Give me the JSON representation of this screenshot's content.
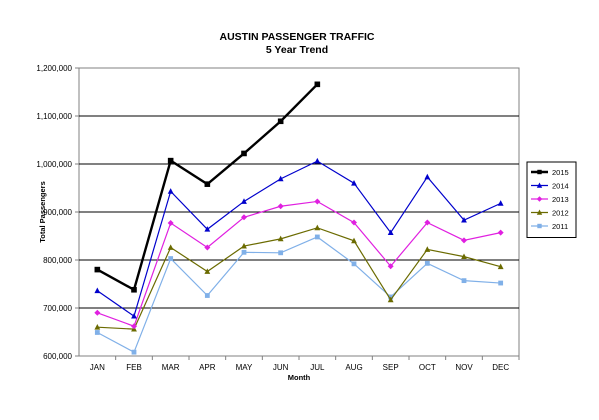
{
  "chart_data": {
    "type": "line",
    "title": "AUSTIN PASSENGER TRAFFIC",
    "subtitle": "5 Year Trend",
    "xlabel": "Month",
    "ylabel": "Total Passengers",
    "ylim": [
      600000,
      1200000
    ],
    "yticks": [
      600000,
      700000,
      800000,
      900000,
      1000000,
      1100000,
      1200000
    ],
    "ytick_labels": [
      "600,000",
      "700,000",
      "800,000",
      "900,000",
      "1,000,000",
      "1,100,000",
      "1,200,000"
    ],
    "grid": "horizontal",
    "legend_position": "right",
    "categories": [
      "JAN",
      "FEB",
      "MAR",
      "APR",
      "MAY",
      "JUN",
      "JUL",
      "AUG",
      "SEP",
      "OCT",
      "NOV",
      "DEC"
    ],
    "series": [
      {
        "name": "2015",
        "color": "#000000",
        "marker": "square",
        "line_width": 2.4,
        "values": [
          780000,
          738000,
          1007000,
          958000,
          1022000,
          1089000,
          1166000,
          null,
          null,
          null,
          null,
          null
        ]
      },
      {
        "name": "2014",
        "color": "#0000cc",
        "marker": "triangle",
        "line_width": 1.2,
        "values": [
          736000,
          683000,
          943000,
          864000,
          922000,
          969000,
          1006000,
          960000,
          857000,
          973000,
          883000,
          918000
        ]
      },
      {
        "name": "2013",
        "color": "#e020e0",
        "marker": "diamond",
        "line_width": 1.2,
        "values": [
          690000,
          662000,
          877000,
          826000,
          889000,
          912000,
          922000,
          878000,
          787000,
          878000,
          841000,
          857000
        ]
      },
      {
        "name": "2012",
        "color": "#6b6b00",
        "marker": "triangle",
        "line_width": 1.2,
        "values": [
          660000,
          656000,
          826000,
          776000,
          829000,
          844000,
          867000,
          840000,
          717000,
          822000,
          807000,
          786000
        ]
      },
      {
        "name": "2011",
        "color": "#80b0e8",
        "marker": "square",
        "line_width": 1.2,
        "values": [
          649000,
          608000,
          803000,
          726000,
          816000,
          815000,
          848000,
          792000,
          723000,
          793000,
          757000,
          752000
        ]
      }
    ]
  }
}
